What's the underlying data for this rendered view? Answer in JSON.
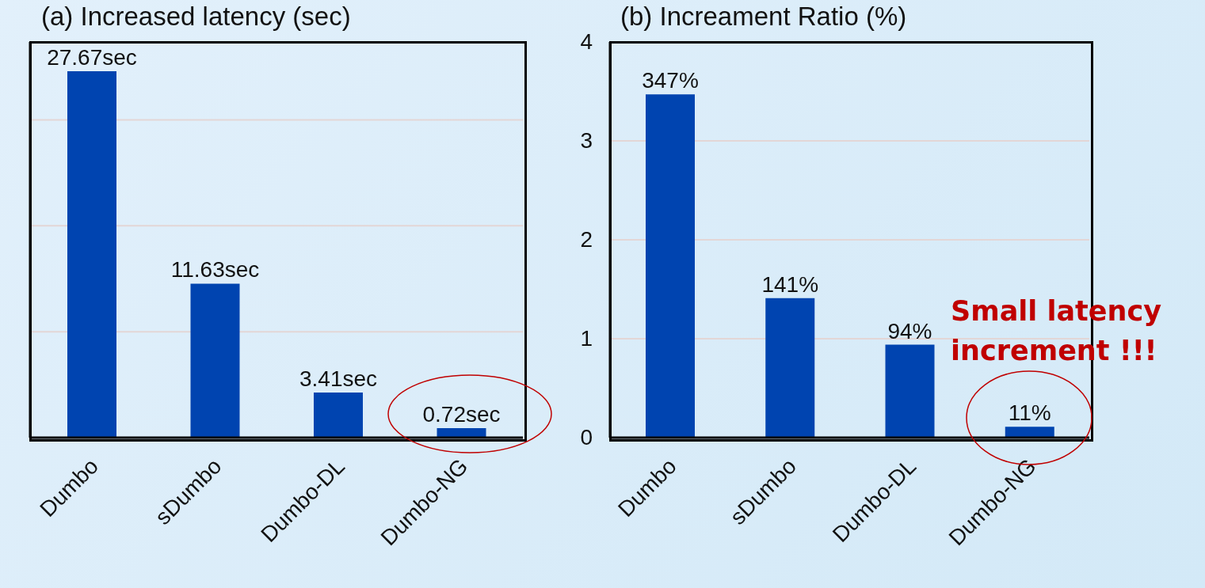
{
  "chart_data": [
    {
      "type": "bar",
      "title": "(a) Increased latency (sec)",
      "categories": [
        "Dumbo",
        "sDumbo",
        "Dumbo-DL",
        "Dumbo-NG"
      ],
      "values": [
        27.67,
        11.63,
        3.41,
        0.72
      ],
      "color": "#0044b0",
      "value_labels": [
        "27.67sec",
        "11.63sec",
        "3.41sec",
        "0.72sec"
      ],
      "grid": "y",
      "tick_labels": "x"
    },
    {
      "type": "bar",
      "title": "(b) Increament Ratio (%)",
      "categories": [
        "Dumbo",
        "sDumbo",
        "Dumbo-DL",
        "Dumbo-NG"
      ],
      "values": [
        3.47,
        1.41,
        0.94,
        0.11
      ],
      "color": "#0044b0",
      "value_labels": [
        "347%",
        "141%",
        "94%",
        "11%"
      ],
      "ylim": [
        0,
        4
      ],
      "yticks": [
        0,
        1,
        2,
        3,
        4
      ],
      "grid": "y",
      "annotations": [
        "Small latency increment !!!"
      ]
    }
  ]
}
